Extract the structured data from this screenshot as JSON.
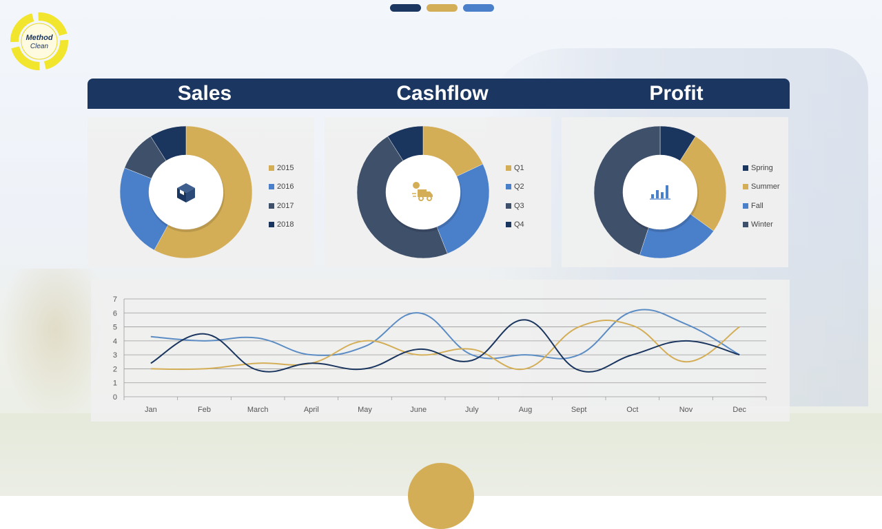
{
  "colors": {
    "navy": "#1b3660",
    "gold": "#d4ae57",
    "blue": "#4a7fc9",
    "slate": "#3f506b",
    "dark_navy": "#1a355e"
  },
  "nav_dots": [
    "#1b3660",
    "#d4ae57",
    "#4a7fc9"
  ],
  "logo": {
    "line1": "Method",
    "line2": "Clean"
  },
  "headers": [
    "Sales",
    "Cashflow",
    "Profit"
  ],
  "chart_data": [
    {
      "type": "pie",
      "title": "Sales",
      "icon": "box-icon",
      "labels": [
        "2015",
        "2016",
        "2017",
        "2018"
      ],
      "values": [
        58,
        23,
        10,
        9
      ],
      "colors": [
        "#d4ae57",
        "#4a7fc9",
        "#3f506b",
        "#1a355e"
      ]
    },
    {
      "type": "pie",
      "title": "Cashflow",
      "icon": "delivery-truck-icon",
      "labels": [
        "Q1",
        "Q2",
        "Q3",
        "Q4"
      ],
      "values": [
        18,
        26,
        47,
        9
      ],
      "colors": [
        "#d4ae57",
        "#4a7fc9",
        "#3f506b",
        "#1a355e"
      ]
    },
    {
      "type": "pie",
      "title": "Profit",
      "icon": "bar-chart-icon",
      "labels": [
        "Spring",
        "Summer",
        "Fall",
        "Winter"
      ],
      "values": [
        9,
        26,
        20,
        45
      ],
      "colors": [
        "#1a355e",
        "#d4ae57",
        "#4a7fc9",
        "#3f506b"
      ]
    },
    {
      "type": "line",
      "categories": [
        "Jan",
        "Feb",
        "March",
        "April",
        "May",
        "June",
        "July",
        "Aug",
        "Sept",
        "Oct",
        "Nov",
        "Dec"
      ],
      "ylim": [
        0,
        7
      ],
      "yticks": [
        "0",
        "1",
        "2",
        "3",
        "4",
        "5",
        "6",
        "7"
      ],
      "grid": true,
      "series": [
        {
          "color": "#5b8cc4",
          "values": [
            4.3,
            4.0,
            4.2,
            3.0,
            3.6,
            6.0,
            3.0,
            3.0,
            3.0,
            6.1,
            5.2,
            3.0
          ]
        },
        {
          "color": "#d4ae57",
          "values": [
            2.0,
            2.0,
            2.4,
            2.4,
            4.0,
            3.0,
            3.4,
            2.0,
            5.0,
            5.1,
            2.5,
            5.0
          ]
        },
        {
          "color": "#1a355e",
          "values": [
            2.4,
            4.5,
            1.9,
            2.4,
            2.0,
            3.4,
            2.6,
            5.5,
            1.9,
            3.0,
            4.0,
            3.0
          ]
        }
      ]
    }
  ]
}
